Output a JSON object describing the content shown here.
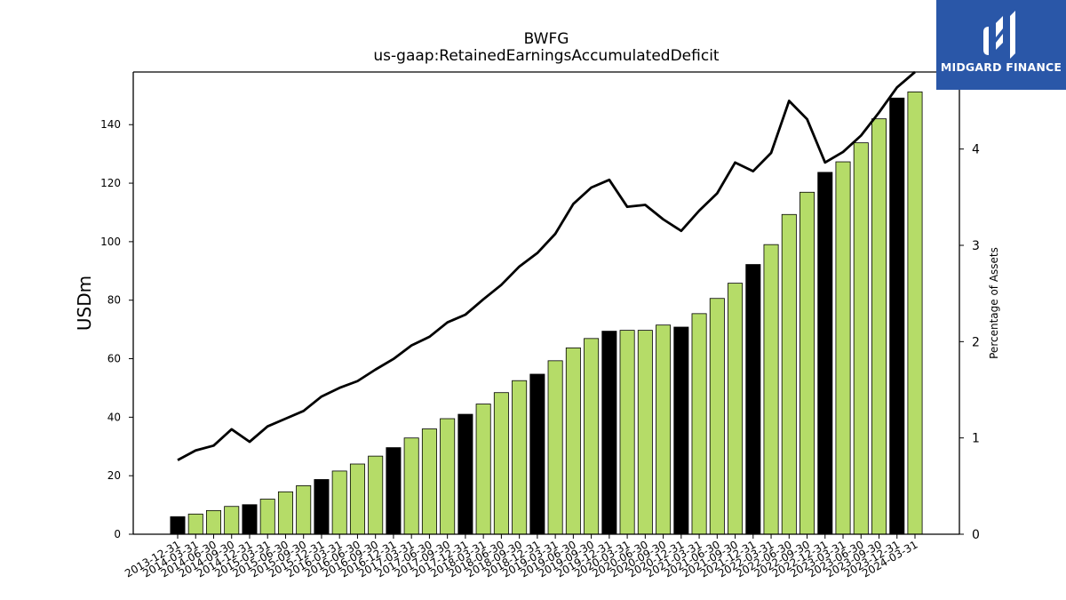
{
  "chart_data": {
    "type": "bar+line",
    "title": "BWFG",
    "subtitle": "us-gaap:RetainedEarningsAccumulatedDeficit",
    "ylabel": "USDm",
    "ylabel_right": "Percentage of Assets",
    "ylim": [
      0,
      158
    ],
    "ylim_right": [
      0,
      4.8
    ],
    "yticks": [
      "0",
      "20",
      "40",
      "60",
      "80",
      "100",
      "120",
      "140"
    ],
    "yticks_right": [
      "0",
      "1",
      "2",
      "3",
      "4"
    ],
    "categories": [
      "2013-12-31",
      "2014-03-31",
      "2014-06-30",
      "2014-09-30",
      "2014-12-31",
      "2015-03-31",
      "2015-06-30",
      "2015-09-30",
      "2015-12-31",
      "2016-03-31",
      "2016-06-30",
      "2016-09-30",
      "2016-12-31",
      "2017-03-31",
      "2017-06-30",
      "2017-09-30",
      "2017-12-31",
      "2018-03-31",
      "2018-06-30",
      "2018-09-30",
      "2018-12-31",
      "2019-03-31",
      "2019-06-30",
      "2019-09-30",
      "2019-12-31",
      "2020-03-31",
      "2020-06-30",
      "2020-09-30",
      "2020-12-31",
      "2021-03-31",
      "2021-06-30",
      "2021-09-30",
      "2021-12-31",
      "2022-03-31",
      "2022-06-30",
      "2022-09-30",
      "2022-12-31",
      "2023-03-31",
      "2023-06-30",
      "2023-09-30",
      "2023-12-31",
      "2024-03-31"
    ],
    "series": [
      {
        "type": "bar",
        "values": [
          6.0,
          6.9,
          8.1,
          9.5,
          10.1,
          12.0,
          14.5,
          16.6,
          18.7,
          21.6,
          24.0,
          26.7,
          29.6,
          32.9,
          36.0,
          39.5,
          41.0,
          44.5,
          48.4,
          52.5,
          54.7,
          59.3,
          63.7,
          66.9,
          69.4,
          69.7,
          69.7,
          71.5,
          70.8,
          75.4,
          80.6,
          85.8,
          92.2,
          99.0,
          109.3,
          116.9,
          123.7,
          127.3,
          133.8,
          142.0,
          149.1,
          151.2
        ],
        "colors": [
          "#000000",
          "#b5dc68",
          "#b5dc68",
          "#b5dc68",
          "#000000",
          "#b5dc68",
          "#b5dc68",
          "#b5dc68",
          "#000000",
          "#b5dc68",
          "#b5dc68",
          "#b5dc68",
          "#000000",
          "#b5dc68",
          "#b5dc68",
          "#b5dc68",
          "#000000",
          "#b5dc68",
          "#b5dc68",
          "#b5dc68",
          "#000000",
          "#b5dc68",
          "#b5dc68",
          "#b5dc68",
          "#000000",
          "#b5dc68",
          "#b5dc68",
          "#b5dc68",
          "#000000",
          "#b5dc68",
          "#b5dc68",
          "#b5dc68",
          "#000000",
          "#b5dc68",
          "#b5dc68",
          "#b5dc68",
          "#000000",
          "#b5dc68",
          "#b5dc68",
          "#b5dc68",
          "#000000",
          "#b5dc68"
        ]
      },
      {
        "type": "line",
        "axis": "right",
        "color": "#000000",
        "values": [
          0.77,
          0.87,
          0.92,
          1.09,
          0.96,
          1.12,
          1.2,
          1.28,
          1.43,
          1.52,
          1.59,
          1.71,
          1.82,
          1.96,
          2.05,
          2.2,
          2.28,
          2.44,
          2.59,
          2.78,
          2.92,
          3.12,
          3.43,
          3.6,
          3.68,
          3.4,
          3.42,
          3.27,
          3.15,
          3.36,
          3.54,
          3.86,
          3.77,
          3.96,
          4.5,
          4.31,
          3.86,
          3.97,
          4.14,
          4.38,
          4.64,
          4.8
        ]
      }
    ],
    "grid": false,
    "legend": "none"
  },
  "logo": {
    "name": "MIDGARD FINANCE",
    "icon": "midgard-logo-icon",
    "background": "#2a57a8"
  }
}
